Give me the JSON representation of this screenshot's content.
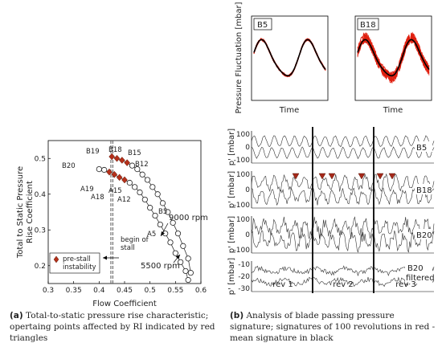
{
  "left": {
    "caption_tag": "(a)",
    "caption": "Total-to-static pressure rise characteristic; opertaing points affected by RI indicated by red triangles",
    "ylabel": [
      "Total to Static Pressure",
      "Rise Coefficient"
    ],
    "xlabel": "Flow Coefficient",
    "xticks": [
      "0.3",
      "0.35",
      "0.4",
      "0.45",
      "0.5",
      "0.55",
      "0.6"
    ],
    "yticks": [
      "0.2",
      "0.3",
      "0.4",
      "0.5"
    ],
    "legend": [
      "pre-stall",
      "instability"
    ],
    "stall_label": [
      "begin of",
      "stall"
    ],
    "speed_high": "9000 rpm",
    "speed_low": "5500 rpm",
    "point_labels": {
      "B19": "B19",
      "B18": "B18",
      "B15": "B15",
      "B12": "B12",
      "B20": "B20",
      "B5": "B5",
      "A19": "A19",
      "A18": "A18",
      "A15": "A15",
      "A12": "A12",
      "A5": "A5"
    }
  },
  "right": {
    "caption_tag": "(b)",
    "caption": "Analysis of blade passing pressure signature; signatures of 100 revolutions in red - mean signature in black",
    "top_ylabel": "Pressure Fluctuation [mbar]",
    "panel1_label": "B5",
    "panel2_label": "B18",
    "time_label": "Time",
    "trace_labels": [
      "B5",
      "B18",
      "B20"
    ],
    "trace_filtered_label": [
      "B20",
      "filtered"
    ],
    "trace_ylabel": "p' [mbar]",
    "ticks_100": [
      "100",
      "0",
      "-100"
    ],
    "ticks_filt": [
      "-10",
      "-20",
      "-30"
    ],
    "rev_labels": [
      "rev 1",
      "rev 2",
      "rev 3"
    ]
  },
  "chart_data": [
    {
      "type": "scatter",
      "title": "",
      "xlabel": "Flow Coefficient",
      "ylabel": "Total to Static Pressure Rise Coefficient",
      "xlim": [
        0.3,
        0.6
      ],
      "ylim": [
        0.15,
        0.55
      ],
      "series": [
        {
          "name": "9000 rpm",
          "x": [
            0.425,
            0.435,
            0.445,
            0.455,
            0.465,
            0.475,
            0.485,
            0.495,
            0.505,
            0.515,
            0.525,
            0.535,
            0.545,
            0.555,
            0.565,
            0.575,
            0.58
          ],
          "y": [
            0.505,
            0.5,
            0.495,
            0.488,
            0.48,
            0.47,
            0.455,
            0.44,
            0.42,
            0.4,
            0.375,
            0.35,
            0.32,
            0.29,
            0.255,
            0.22,
            0.18
          ],
          "pre_stall": [
            0.425,
            0.435,
            0.445,
            0.455
          ]
        },
        {
          "name": "5500 rpm",
          "x": [
            0.4,
            0.41,
            0.42,
            0.43,
            0.44,
            0.45,
            0.46,
            0.47,
            0.48,
            0.49,
            0.5,
            0.51,
            0.52,
            0.53,
            0.54,
            0.55,
            0.56,
            0.57,
            0.575
          ],
          "y": [
            0.47,
            0.468,
            0.462,
            0.455,
            0.447,
            0.44,
            0.432,
            0.42,
            0.405,
            0.385,
            0.362,
            0.34,
            0.315,
            0.29,
            0.265,
            0.235,
            0.21,
            0.185,
            0.16
          ],
          "pre_stall": [
            0.42,
            0.43,
            0.44,
            0.45
          ]
        }
      ],
      "stall_line_x": 0.425
    }
  ]
}
